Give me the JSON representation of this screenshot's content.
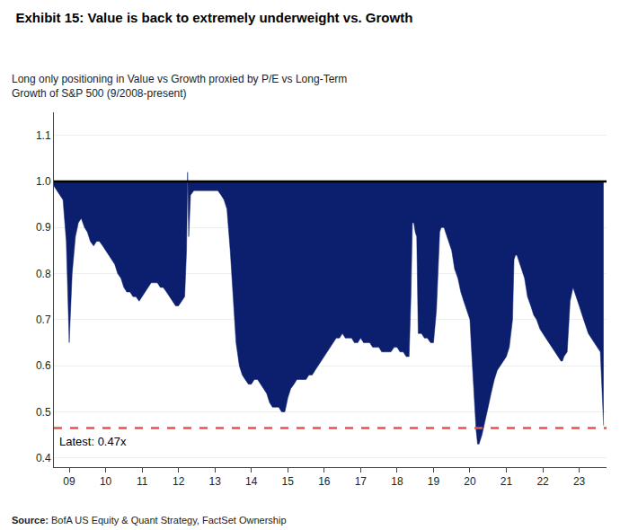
{
  "chart_data": {
    "type": "area",
    "title": "Exhibit 15: Value is back to extremely underweight vs. Growth",
    "subtitle": "Long only positioning in Value vs Growth proxied by P/E vs Long-Term\nGrowth of S&P 500 (9/2008-present)",
    "source": "Source: BofA US Equity & Quant Strategy, FactSet Ownership",
    "annotations": [
      "Latest: 0.47x"
    ],
    "grid": true,
    "xlim": [
      2008.58,
      2023.75
    ],
    "xticks": [
      {
        "value": 2009,
        "label": "09"
      },
      {
        "value": 2010,
        "label": "10"
      },
      {
        "value": 2011,
        "label": "11"
      },
      {
        "value": 2012,
        "label": "12"
      },
      {
        "value": 2013,
        "label": "13"
      },
      {
        "value": 2014,
        "label": "14"
      },
      {
        "value": 2015,
        "label": "15"
      },
      {
        "value": 2016,
        "label": "16"
      },
      {
        "value": 2017,
        "label": "17"
      },
      {
        "value": 2018,
        "label": "18"
      },
      {
        "value": 2019,
        "label": "19"
      },
      {
        "value": 2020,
        "label": "20"
      },
      {
        "value": 2021,
        "label": "21"
      },
      {
        "value": 2022,
        "label": "22"
      },
      {
        "value": 2023,
        "label": "23"
      }
    ],
    "ylim": [
      0.38,
      1.15
    ],
    "yticks": [
      0.4,
      0.5,
      0.6,
      0.7,
      0.8,
      0.9,
      {
        "value": 1.0,
        "label": "1.0"
      },
      1.1
    ],
    "ceiling": {
      "value": 1.0,
      "color": "black"
    },
    "reference_line": {
      "value": 0.465,
      "color": "#E05550",
      "line_style": "dashed"
    },
    "x": [
      2008.58,
      2008.67,
      2008.75,
      2008.83,
      2008.92,
      2009.0,
      2009.08,
      2009.17,
      2009.25,
      2009.33,
      2009.42,
      2009.5,
      2009.58,
      2009.67,
      2009.75,
      2009.83,
      2009.92,
      2010.0,
      2010.08,
      2010.17,
      2010.25,
      2010.33,
      2010.42,
      2010.5,
      2010.58,
      2010.67,
      2010.75,
      2010.83,
      2010.92,
      2011.0,
      2011.08,
      2011.17,
      2011.25,
      2011.33,
      2011.42,
      2011.5,
      2011.58,
      2011.67,
      2011.75,
      2011.83,
      2011.92,
      2012.0,
      2012.08,
      2012.17,
      2012.22,
      2012.25,
      2012.28,
      2012.33,
      2012.42,
      2012.5,
      2012.58,
      2012.67,
      2012.75,
      2012.83,
      2012.92,
      2013.0,
      2013.08,
      2013.17,
      2013.25,
      2013.33,
      2013.42,
      2013.5,
      2013.58,
      2013.67,
      2013.75,
      2013.83,
      2013.92,
      2014.0,
      2014.08,
      2014.17,
      2014.25,
      2014.33,
      2014.42,
      2014.5,
      2014.58,
      2014.67,
      2014.75,
      2014.83,
      2014.92,
      2015.0,
      2015.08,
      2015.17,
      2015.25,
      2015.33,
      2015.42,
      2015.5,
      2015.58,
      2015.67,
      2015.75,
      2015.83,
      2015.92,
      2016.0,
      2016.08,
      2016.17,
      2016.25,
      2016.33,
      2016.42,
      2016.5,
      2016.58,
      2016.67,
      2016.75,
      2016.83,
      2016.92,
      2017.0,
      2017.08,
      2017.17,
      2017.25,
      2017.33,
      2017.42,
      2017.5,
      2017.58,
      2017.67,
      2017.75,
      2017.83,
      2017.92,
      2018.0,
      2018.08,
      2018.17,
      2018.25,
      2018.33,
      2018.38,
      2018.42,
      2018.46,
      2018.5,
      2018.54,
      2018.58,
      2018.67,
      2018.75,
      2018.83,
      2018.92,
      2019.0,
      2019.08,
      2019.17,
      2019.21,
      2019.25,
      2019.29,
      2019.33,
      2019.42,
      2019.5,
      2019.54,
      2019.58,
      2019.67,
      2019.75,
      2019.83,
      2019.92,
      2020.0,
      2020.04,
      2020.08,
      2020.12,
      2020.17,
      2020.21,
      2020.25,
      2020.33,
      2020.42,
      2020.5,
      2020.58,
      2020.67,
      2020.75,
      2020.83,
      2020.92,
      2021.0,
      2021.08,
      2021.17,
      2021.21,
      2021.25,
      2021.29,
      2021.33,
      2021.42,
      2021.5,
      2021.54,
      2021.58,
      2021.67,
      2021.75,
      2021.83,
      2021.92,
      2022.0,
      2022.08,
      2022.17,
      2022.25,
      2022.33,
      2022.42,
      2022.5,
      2022.54,
      2022.58,
      2022.67,
      2022.75,
      2022.83,
      2022.92,
      2023.0,
      2023.08,
      2023.17,
      2023.25,
      2023.33,
      2023.42,
      2023.5,
      2023.58,
      2023.67
    ],
    "series": [
      {
        "color": "#0C1F6E",
        "values": [
          0.99,
          0.98,
          0.97,
          0.96,
          0.87,
          0.65,
          0.8,
          0.88,
          0.91,
          0.92,
          0.9,
          0.89,
          0.87,
          0.86,
          0.87,
          0.87,
          0.86,
          0.85,
          0.84,
          0.83,
          0.82,
          0.8,
          0.79,
          0.77,
          0.76,
          0.76,
          0.75,
          0.75,
          0.74,
          0.75,
          0.76,
          0.77,
          0.78,
          0.78,
          0.78,
          0.77,
          0.77,
          0.76,
          0.75,
          0.74,
          0.73,
          0.73,
          0.74,
          0.75,
          0.85,
          1.02,
          0.88,
          0.97,
          0.98,
          0.98,
          0.98,
          0.98,
          0.98,
          0.98,
          0.98,
          0.98,
          0.98,
          0.97,
          0.96,
          0.94,
          0.85,
          0.75,
          0.65,
          0.6,
          0.58,
          0.57,
          0.56,
          0.56,
          0.57,
          0.57,
          0.56,
          0.55,
          0.54,
          0.52,
          0.51,
          0.51,
          0.51,
          0.5,
          0.5,
          0.53,
          0.55,
          0.56,
          0.57,
          0.57,
          0.57,
          0.57,
          0.58,
          0.58,
          0.59,
          0.6,
          0.61,
          0.62,
          0.63,
          0.64,
          0.65,
          0.66,
          0.66,
          0.67,
          0.66,
          0.66,
          0.66,
          0.65,
          0.65,
          0.66,
          0.65,
          0.65,
          0.65,
          0.64,
          0.64,
          0.64,
          0.63,
          0.63,
          0.63,
          0.63,
          0.64,
          0.64,
          0.63,
          0.63,
          0.62,
          0.62,
          0.75,
          0.91,
          0.91,
          0.89,
          0.88,
          0.67,
          0.67,
          0.66,
          0.66,
          0.65,
          0.65,
          0.72,
          0.89,
          0.9,
          0.9,
          0.9,
          0.89,
          0.87,
          0.85,
          0.83,
          0.81,
          0.79,
          0.76,
          0.74,
          0.72,
          0.7,
          0.64,
          0.58,
          0.52,
          0.46,
          0.43,
          0.43,
          0.45,
          0.48,
          0.51,
          0.54,
          0.57,
          0.59,
          0.6,
          0.61,
          0.62,
          0.64,
          0.7,
          0.83,
          0.84,
          0.84,
          0.83,
          0.81,
          0.79,
          0.77,
          0.75,
          0.73,
          0.71,
          0.7,
          0.68,
          0.67,
          0.66,
          0.65,
          0.64,
          0.63,
          0.62,
          0.61,
          0.61,
          0.62,
          0.63,
          0.74,
          0.77,
          0.75,
          0.73,
          0.71,
          0.69,
          0.67,
          0.66,
          0.65,
          0.64,
          0.63,
          0.47
        ]
      }
    ]
  }
}
